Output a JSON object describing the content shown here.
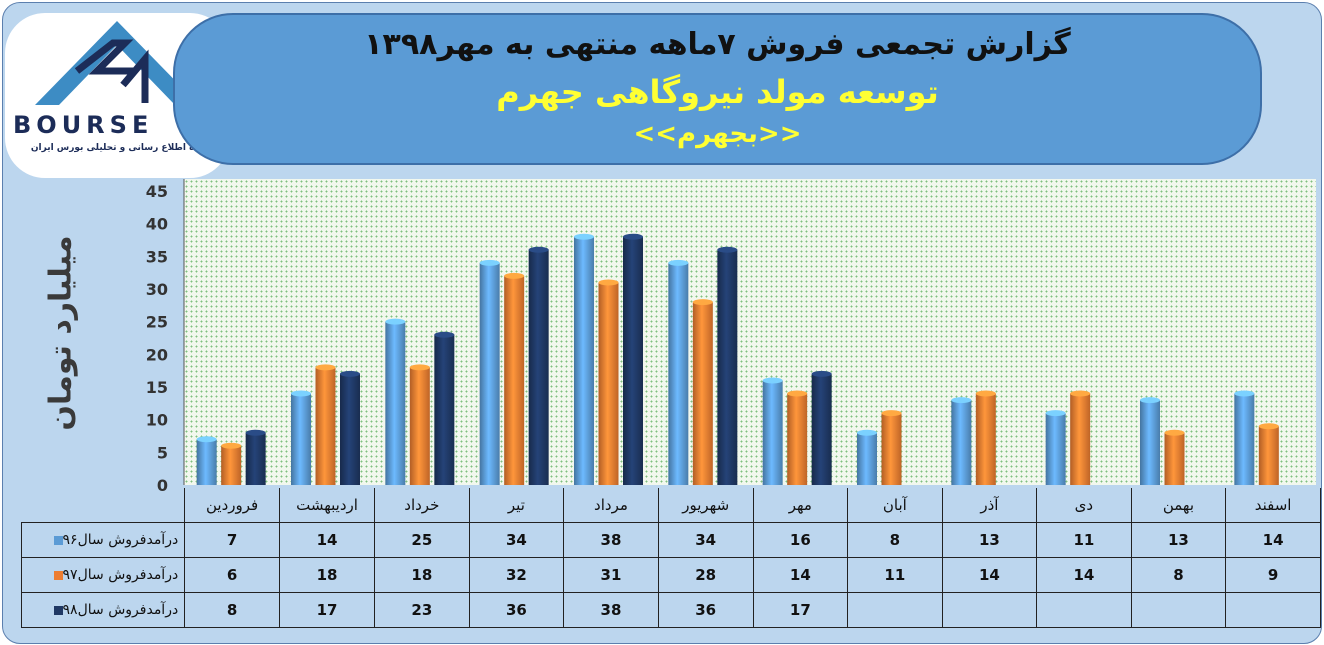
{
  "title": {
    "line1": "گزارش تجمعی فروش ۷ماهه منتهی به مهر۱۳۹۸",
    "line2": "توسعه مولد نیروگاهی جهرم",
    "line3": "<<بجهرم>>"
  },
  "logo": {
    "text": "BOURSE",
    "subtitle": "پایگاه اطلاع رسانی و تحلیلی بورس ایران"
  },
  "colors": {
    "series96": "#5b9bd5",
    "series97": "#ed7d31",
    "series98": "#1f3864",
    "banner": "#5b9bd5",
    "frame": "#bcd6ee"
  },
  "chart_data": {
    "type": "bar",
    "ylabel": "میلیارد تومان",
    "ylim": [
      0,
      45
    ],
    "yticks": [
      0,
      5,
      10,
      15,
      20,
      25,
      30,
      35,
      40,
      45
    ],
    "categories": [
      "فروردین",
      "اردیبهشت",
      "خرداد",
      "تیر",
      "مرداد",
      "شهریور",
      "مهر",
      "آبان",
      "آذر",
      "دی",
      "بهمن",
      "اسفند"
    ],
    "series": [
      {
        "name": "درآمدفروش سال۹۶",
        "values": [
          7,
          14,
          25,
          34,
          38,
          34,
          16,
          8,
          13,
          11,
          13,
          14
        ]
      },
      {
        "name": "درآمدفروش سال۹۷",
        "values": [
          6,
          18,
          18,
          32,
          31,
          28,
          14,
          11,
          14,
          14,
          8,
          9
        ]
      },
      {
        "name": "درآمدفروش سال۹۸",
        "values": [
          8,
          17,
          23,
          36,
          38,
          36,
          17,
          null,
          null,
          null,
          null,
          null
        ]
      }
    ],
    "legend": "data-table"
  }
}
